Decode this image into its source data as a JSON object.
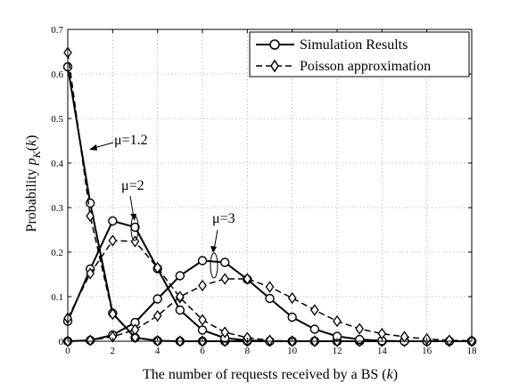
{
  "chart_data": {
    "type": "line",
    "xlabel": "The number of requests received by a BS (k)",
    "ylabel": "Probability p_K(k)",
    "xlim": [
      0,
      18
    ],
    "ylim": [
      0,
      0.7
    ],
    "x_ticks": [
      "0",
      "2",
      "4",
      "6",
      "8",
      "10",
      "12",
      "14",
      "16",
      "18"
    ],
    "y_ticks": [
      "0",
      "0.1",
      "0.2",
      "0.3",
      "0.4",
      "0.5",
      "0.6",
      "0.7"
    ],
    "grid": true,
    "legend_position": "top-right",
    "legend": [
      {
        "label": "Simulation Results",
        "style": "solid",
        "marker": "circle"
      },
      {
        "label": "Poisson approximation",
        "style": "dashed",
        "marker": "diamond"
      }
    ],
    "annotations": [
      {
        "text": "μ=1.2"
      },
      {
        "text": "μ=2"
      },
      {
        "text": "μ=3"
      }
    ],
    "x": [
      0,
      1,
      2,
      3,
      4,
      5,
      6,
      7,
      8,
      9,
      10,
      11,
      12,
      13,
      14,
      15,
      16,
      17,
      18
    ],
    "series": [
      {
        "group": "μ=1.2",
        "kind": "Simulation Results",
        "values": [
          0.616,
          0.31,
          0.063,
          0.008,
          0.001,
          0.0,
          0.0,
          0.0,
          0.0,
          0.0,
          0.0,
          0.0,
          0.0,
          0.0,
          0.0,
          0.0,
          0.0,
          0.0,
          0.0
        ]
      },
      {
        "group": "μ=1.2",
        "kind": "Poisson approximation",
        "values": [
          0.648,
          0.281,
          0.061,
          0.009,
          0.001,
          0.0,
          0.0,
          0.0,
          0.0,
          0.0,
          0.0,
          0.0,
          0.0,
          0.0,
          0.0,
          0.0,
          0.0,
          0.0,
          0.0
        ]
      },
      {
        "group": "μ=2",
        "kind": "Simulation Results",
        "values": [
          0.045,
          0.162,
          0.27,
          0.256,
          0.163,
          0.07,
          0.025,
          0.007,
          0.002,
          0.0,
          0.0,
          0.0,
          0.0,
          0.0,
          0.0,
          0.0,
          0.0,
          0.0,
          0.0
        ]
      },
      {
        "group": "μ=2",
        "kind": "Poisson approximation",
        "values": [
          0.052,
          0.152,
          0.226,
          0.224,
          0.165,
          0.098,
          0.048,
          0.02,
          0.008,
          0.002,
          0.0,
          0.0,
          0.0,
          0.0,
          0.0,
          0.0,
          0.0,
          0.0,
          0.0
        ]
      },
      {
        "group": "μ=3",
        "kind": "Simulation Results",
        "values": [
          0.0,
          0.002,
          0.014,
          0.042,
          0.095,
          0.147,
          0.181,
          0.177,
          0.139,
          0.096,
          0.054,
          0.027,
          0.011,
          0.004,
          0.001,
          0.0,
          0.0,
          0.0,
          0.0
        ]
      },
      {
        "group": "μ=3",
        "kind": "Poisson approximation",
        "values": [
          0.0,
          0.002,
          0.01,
          0.026,
          0.057,
          0.1,
          0.125,
          0.14,
          0.14,
          0.122,
          0.097,
          0.07,
          0.045,
          0.028,
          0.017,
          0.01,
          0.005,
          0.002,
          0.001
        ]
      }
    ]
  }
}
